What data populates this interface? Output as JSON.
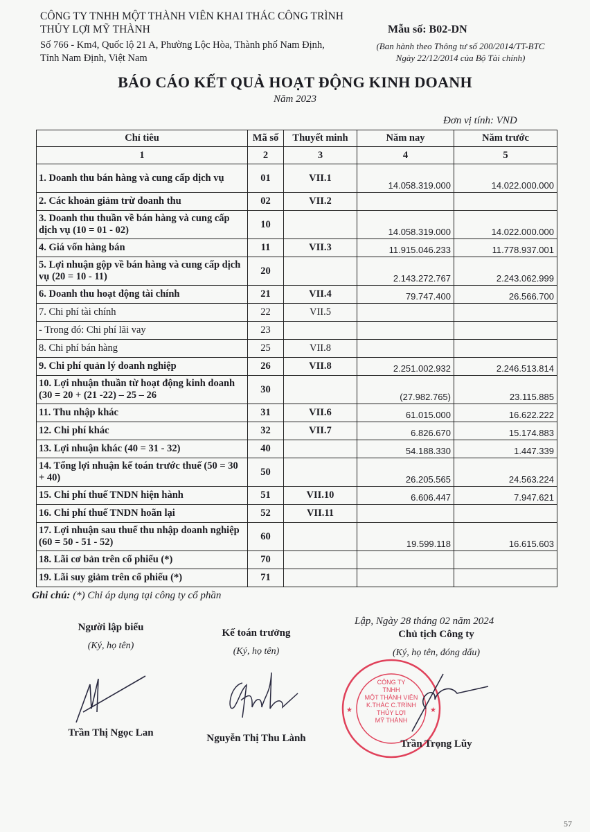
{
  "company": {
    "name_line1": "CÔNG TY TNHH MỘT THÀNH VIÊN KHAI THÁC CÔNG TRÌNH",
    "name_line2": "THỦY LỢI MỸ THÀNH",
    "address_line1": "Số 766 - Km4, Quốc lộ 21 A, Phường Lộc Hòa, Thành phố Nam Định,",
    "address_line2": "Tỉnh Nam Định, Việt Nam"
  },
  "form": {
    "code": "Mẫu số: B02-DN",
    "note_line1": "(Ban hành theo Thông tư số 200/2014/TT-BTC",
    "note_line2": "Ngày 22/12/2014 của Bộ Tài chính)"
  },
  "title": "BÁO CÁO KẾT QUẢ HOẠT ĐỘNG KINH DOANH",
  "year": "Năm 2023",
  "unit": "Đơn vị tính: VND",
  "table": {
    "headers": [
      "Chỉ tiêu",
      "Mã số",
      "Thuyết minh",
      "Năm nay",
      "Năm trước"
    ],
    "index": [
      "1",
      "2",
      "3",
      "4",
      "5"
    ],
    "rows": [
      {
        "name": "1. Doanh thu bán hàng và cung cấp dịch vụ",
        "code": "01",
        "note": "VII.1",
        "current": "14.058.319.000",
        "previous": "14.022.000.000"
      },
      {
        "name": "2. Các khoản giảm trừ doanh thu",
        "code": "02",
        "note": "VII.2",
        "current": "",
        "previous": ""
      },
      {
        "name": "3. Doanh thu thuần về bán hàng và cung cấp dịch vụ (10 = 01 - 02)",
        "code": "10",
        "note": "",
        "current": "14.058.319.000",
        "previous": "14.022.000.000"
      },
      {
        "name": "4. Giá vốn hàng bán",
        "code": "11",
        "note": "VII.3",
        "current": "11.915.046.233",
        "previous": "11.778.937.001"
      },
      {
        "name": "5. Lợi nhuận gộp về bán hàng và cung cấp dịch vụ (20 = 10 - 11)",
        "code": "20",
        "note": "",
        "current": "2.143.272.767",
        "previous": "2.243.062.999"
      },
      {
        "name": "6. Doanh thu hoạt động tài chính",
        "code": "21",
        "note": "VII.4",
        "current": "79.747.400",
        "previous": "26.566.700"
      },
      {
        "name": "7. Chi phí tài chính",
        "code": "22",
        "note": "VII.5",
        "current": "",
        "previous": ""
      },
      {
        "name": "- Trong đó: Chi phí lãi vay",
        "code": "23",
        "note": "",
        "current": "",
        "previous": ""
      },
      {
        "name": "8. Chi phí bán hàng",
        "code": "25",
        "note": "VII.8",
        "current": "",
        "previous": ""
      },
      {
        "name": "9. Chi phí quản lý doanh nghiệp",
        "code": "26",
        "note": "VII.8",
        "current": "2.251.002.932",
        "previous": "2.246.513.814"
      },
      {
        "name": "10. Lợi nhuận thuần từ hoạt động kinh doanh (30 = 20 + (21 -22) – 25 – 26",
        "code": "30",
        "note": "",
        "current": "(27.982.765)",
        "previous": "23.115.885"
      },
      {
        "name": "11. Thu nhập khác",
        "code": "31",
        "note": "VII.6",
        "current": "61.015.000",
        "previous": "16.622.222"
      },
      {
        "name": "12. Chi phí khác",
        "code": "32",
        "note": "VII.7",
        "current": "6.826.670",
        "previous": "15.174.883"
      },
      {
        "name": "13. Lợi nhuận khác (40 = 31 - 32)",
        "code": "40",
        "note": "",
        "current": "54.188.330",
        "previous": "1.447.339"
      },
      {
        "name": "14. Tổng lợi nhuận kế toán trước thuế (50 = 30 + 40)",
        "code": "50",
        "note": "",
        "current": "26.205.565",
        "previous": "24.563.224"
      },
      {
        "name": "15. Chi phí thuế TNDN hiện hành",
        "code": "51",
        "note": "VII.10",
        "current": "6.606.447",
        "previous": "7.947.621"
      },
      {
        "name": "16. Chi phí thuế TNDN hoãn lại",
        "code": "52",
        "note": "VII.11",
        "current": "",
        "previous": ""
      },
      {
        "name": "17. Lợi nhuận sau thuế thu nhập doanh nghiệp (60 = 50 - 51 - 52)",
        "code": "60",
        "note": "",
        "current": "19.599.118",
        "previous": "16.615.603"
      },
      {
        "name": "18. Lãi cơ bản trên cổ phiếu (*)",
        "code": "70",
        "note": "",
        "current": "",
        "previous": ""
      },
      {
        "name": "19. Lãi suy giảm trên cổ phiếu (*)",
        "code": "71",
        "note": "",
        "current": "",
        "previous": ""
      }
    ]
  },
  "footnote_label": "Ghi chú:",
  "footnote": "(*) Chỉ áp dụng tại công ty cổ phần",
  "date_line": "Lập, Ngày 28 tháng 02 năm 2024",
  "signatures": [
    {
      "role": "Người lập biểu",
      "hint": "(Ký, họ tên)",
      "name": "Trần Thị Ngọc Lan"
    },
    {
      "role": "Kế toán trưởng",
      "hint": "(Ký, họ tên)",
      "name": "Nguyễn Thị Thu Lành"
    },
    {
      "role": "Chủ tịch Công ty",
      "hint": "(Ký, họ tên, đóng dấu)",
      "name": "Trần Trọng Lũy"
    }
  ],
  "stamp": {
    "ring_text": "SĐKKD: 0600257617 - C.T.T.NHH - TP.NAM ĐỊNH - T.NAM ĐỊNH",
    "center_lines": [
      "CÔNG TY",
      "TNHH",
      "MỘT THÀNH VIÊN",
      "K.THÁC C.TRÌNH",
      "THỦY LỢI",
      "MỸ THÀNH"
    ],
    "color": "#e0415a"
  },
  "page_number": "57"
}
